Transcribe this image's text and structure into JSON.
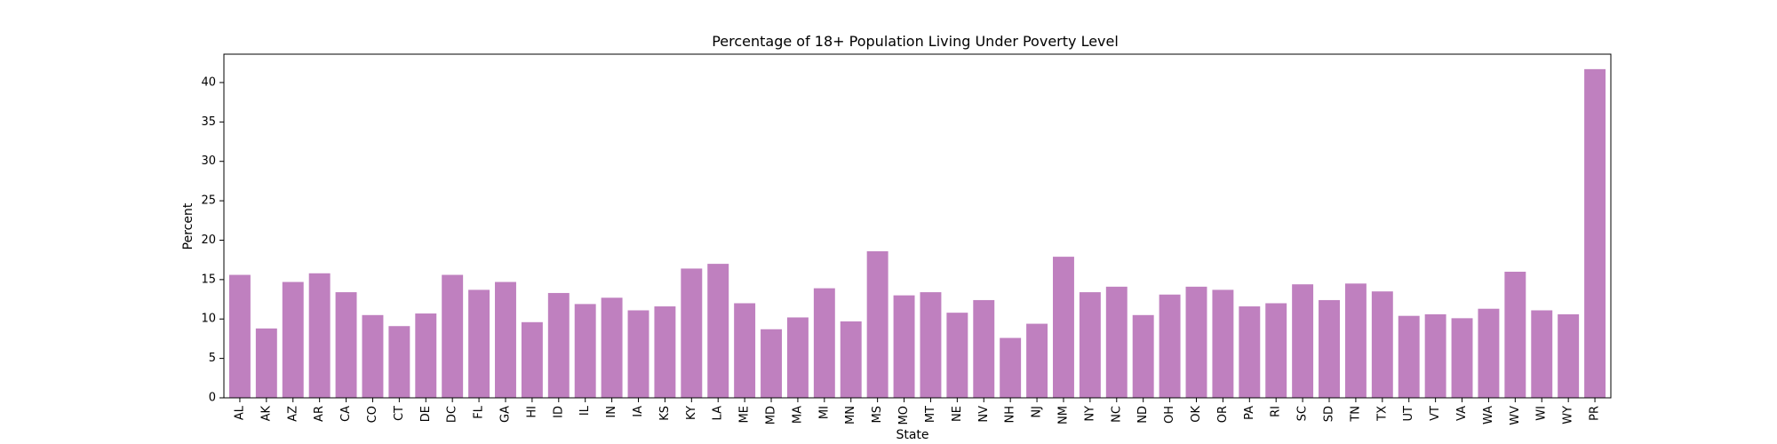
{
  "chart_data": {
    "type": "bar",
    "title": "Percentage of 18+ Population Living Under Poverty Level",
    "xlabel": "State",
    "ylabel": "Percent",
    "ylim": [
      0,
      43.6
    ],
    "yticks": [
      0,
      5,
      10,
      15,
      20,
      25,
      30,
      35,
      40
    ],
    "grid": false,
    "bar_color": "#bf80bf",
    "categories": [
      "AL",
      "AK",
      "AZ",
      "AR",
      "CA",
      "CO",
      "CT",
      "DE",
      "DC",
      "FL",
      "GA",
      "HI",
      "ID",
      "IL",
      "IN",
      "IA",
      "KS",
      "KY",
      "LA",
      "ME",
      "MD",
      "MA",
      "MI",
      "MN",
      "MS",
      "MO",
      "MT",
      "NE",
      "NV",
      "NH",
      "NJ",
      "NM",
      "NY",
      "NC",
      "ND",
      "OH",
      "OK",
      "OR",
      "PA",
      "RI",
      "SC",
      "SD",
      "TN",
      "TX",
      "UT",
      "VT",
      "VA",
      "WA",
      "WV",
      "WI",
      "WY",
      "PR"
    ],
    "values": [
      15.6,
      8.8,
      14.7,
      15.8,
      13.4,
      10.5,
      9.1,
      10.7,
      15.6,
      13.7,
      14.7,
      9.6,
      13.3,
      11.9,
      12.7,
      11.1,
      11.6,
      16.4,
      17.0,
      12.0,
      8.7,
      10.2,
      13.9,
      9.7,
      18.6,
      13.0,
      13.4,
      10.8,
      12.4,
      7.6,
      9.4,
      17.9,
      13.4,
      14.1,
      10.5,
      13.1,
      14.1,
      13.7,
      11.6,
      12.0,
      14.4,
      12.4,
      14.5,
      13.5,
      10.4,
      10.6,
      10.1,
      11.3,
      16.0,
      11.1,
      10.6,
      41.7
    ]
  }
}
